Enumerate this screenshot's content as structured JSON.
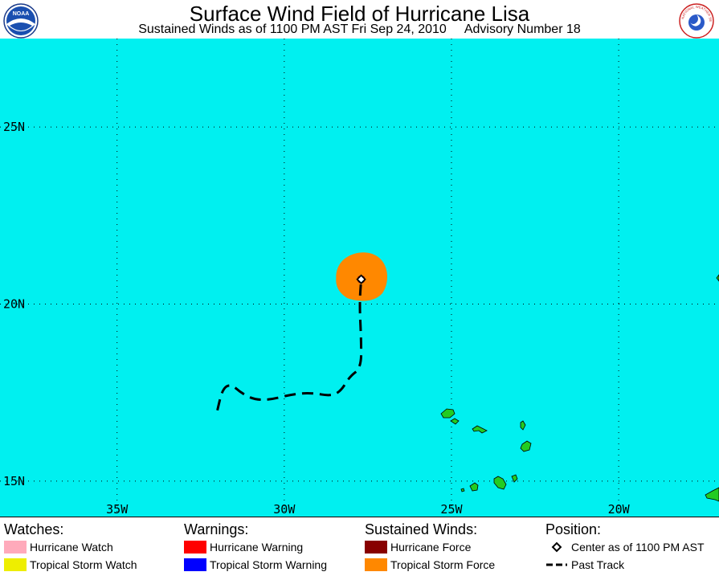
{
  "header": {
    "title": "Surface Wind Field of Hurricane Lisa",
    "subtitle_time": "Sustained Winds as of 1100 PM AST Fri Sep 24, 2010",
    "subtitle_advisory": "Advisory Number 18",
    "logo_left_text": "NOAA",
    "logo_right_text": "NATIONAL WEATHER SERVICE"
  },
  "map": {
    "ocean_color": "#00f0f0",
    "land_color": "#22cc22",
    "lon_labels": [
      "35W",
      "30W",
      "25W",
      "20W"
    ],
    "lat_labels": [
      "25N",
      "20N",
      "15N"
    ],
    "lon_values": [
      -35,
      -30,
      -25,
      -20
    ],
    "lat_values": [
      25,
      20,
      15
    ],
    "lon_range": [
      -38.5,
      -17.0
    ],
    "lat_range": [
      14.0,
      27.5
    ],
    "storm_center": {
      "lon": -27.7,
      "lat": 20.7
    },
    "tropical_storm_force_radius_deg": 0.75,
    "hurricane_force_radius_deg": 0.12,
    "past_track": [
      [
        -32.0,
        17.0
      ],
      [
        -31.85,
        17.6
      ],
      [
        -31.6,
        17.75
      ],
      [
        -31.3,
        17.5
      ],
      [
        -30.9,
        17.3
      ],
      [
        -30.4,
        17.3
      ],
      [
        -29.8,
        17.45
      ],
      [
        -29.2,
        17.5
      ],
      [
        -28.6,
        17.4
      ],
      [
        -28.3,
        17.55
      ],
      [
        -28.05,
        17.95
      ],
      [
        -27.7,
        18.2
      ],
      [
        -27.7,
        19.0
      ],
      [
        -27.75,
        20.0
      ],
      [
        -27.7,
        20.7
      ]
    ]
  },
  "legend": {
    "watches": {
      "heading": "Watches:",
      "items": [
        {
          "label": "Hurricane Watch",
          "color": "#ffaabb"
        },
        {
          "label": "Tropical Storm Watch",
          "color": "#eeee00"
        }
      ]
    },
    "warnings": {
      "heading": "Warnings:",
      "items": [
        {
          "label": "Hurricane Warning",
          "color": "#ff0000"
        },
        {
          "label": "Tropical Storm Warning",
          "color": "#0000ff"
        }
      ]
    },
    "winds": {
      "heading": "Sustained Winds:",
      "items": [
        {
          "label": "Hurricane Force",
          "color": "#880000"
        },
        {
          "label": "Tropical Storm Force",
          "color": "#ff8800"
        }
      ]
    },
    "position": {
      "heading": "Position:",
      "center_label": "Center as of 1100 PM AST",
      "track_label": "Past Track"
    }
  }
}
